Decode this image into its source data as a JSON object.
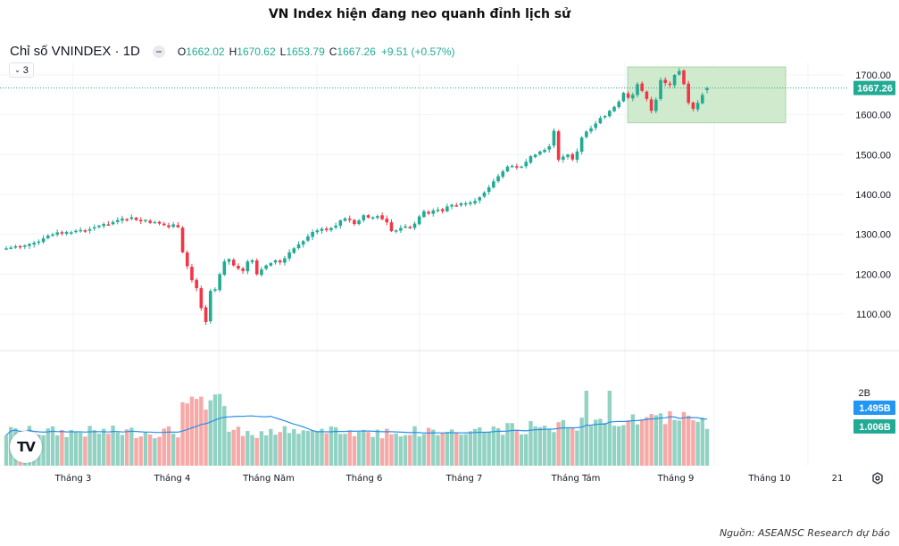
{
  "title": "VN Index hiện đang neo quanh đỉnh lịch sử",
  "legend": {
    "symbol": "Chỉ số VNINDEX · 1D",
    "open_label": "O",
    "open": "1662.02",
    "high_label": "H",
    "high": "1670.62",
    "low_label": "L",
    "low": "1653.79",
    "close_label": "C",
    "close": "1667.26",
    "change": "+9.51 (+0.57%)",
    "collapse_count": "3"
  },
  "price_axis": {
    "ticks": [
      "1700.00",
      "1600.00",
      "1500.00",
      "1400.00",
      "1300.00",
      "1200.00",
      "1100.00"
    ],
    "last_price": "1667.26"
  },
  "volume_axis": {
    "ticks": [
      "2B"
    ],
    "ma_value": "1.495B",
    "last_volume": "1.006B"
  },
  "time_axis": {
    "labels": [
      "Tháng 3",
      "Tháng 4",
      "Tháng Năm",
      "Tháng 6",
      "Tháng 7",
      "Tháng Tám",
      "Tháng 9",
      "Tháng 10",
      "21"
    ]
  },
  "source": "Nguồn: ASEANSC Research dự báo",
  "logo": "TV",
  "colors": {
    "up": "#22ab94",
    "down": "#f23645",
    "up_volume": "#92d2c3",
    "down_volume": "#f7a9a7",
    "ma_line": "#2a8ee8",
    "highlight": "#c8e6c4",
    "highlight_border": "#a5d6a7",
    "ma_badge": "#2196f3",
    "last_badge": "#22ab94"
  },
  "chart_data": {
    "type": "candlestick",
    "title": "VN Index hiện đang neo quanh đỉnh lịch sử",
    "symbol": "VNINDEX",
    "interval": "1D",
    "ylim": [
      1050,
      1730
    ],
    "volume_ylim": [
      0,
      2600000000
    ],
    "x_ticks": [
      "Tháng 3",
      "Tháng 4",
      "Tháng Năm",
      "Tháng 6",
      "Tháng 7",
      "Tháng Tám",
      "Tháng 9",
      "Tháng 10",
      "21"
    ],
    "highlight_zone": {
      "price_from": 1580,
      "price_to": 1720,
      "description": "current consolidation near all-time high"
    },
    "last_close": 1667.26,
    "closes": [
      1265,
      1267,
      1270,
      1268,
      1272,
      1276,
      1279,
      1282,
      1290,
      1297,
      1300,
      1305,
      1303,
      1306,
      1305,
      1309,
      1311,
      1310,
      1313,
      1318,
      1322,
      1326,
      1325,
      1331,
      1336,
      1340,
      1338,
      1343,
      1336,
      1333,
      1336,
      1329,
      1331,
      1327,
      1323,
      1318,
      1325,
      1318,
      1255,
      1220,
      1185,
      1165,
      1115,
      1080,
      1158,
      1162,
      1200,
      1232,
      1238,
      1222,
      1214,
      1208,
      1232,
      1235,
      1200,
      1212,
      1222,
      1228,
      1235,
      1230,
      1240,
      1255,
      1265,
      1275,
      1283,
      1295,
      1306,
      1310,
      1314,
      1312,
      1316,
      1322,
      1335,
      1340,
      1336,
      1326,
      1335,
      1348,
      1342,
      1343,
      1346,
      1338,
      1330,
      1308,
      1310,
      1316,
      1320,
      1316,
      1327,
      1345,
      1358,
      1352,
      1360,
      1362,
      1358,
      1370,
      1374,
      1372,
      1378,
      1378,
      1380,
      1384,
      1393,
      1405,
      1418,
      1433,
      1446,
      1458,
      1470,
      1472,
      1468,
      1470,
      1482,
      1496,
      1500,
      1508,
      1512,
      1521,
      1560,
      1487,
      1495,
      1500,
      1488,
      1508,
      1543,
      1558,
      1566,
      1578,
      1592,
      1597,
      1610,
      1620,
      1633,
      1655,
      1643,
      1650,
      1677,
      1660,
      1640,
      1610,
      1638,
      1687,
      1680,
      1675,
      1700,
      1710,
      1677,
      1630,
      1615,
      1630,
      1650,
      1667.26
    ],
    "volumes_billion_approx": "0.6–2.0 per day; peaks ~2.05B in August"
  }
}
